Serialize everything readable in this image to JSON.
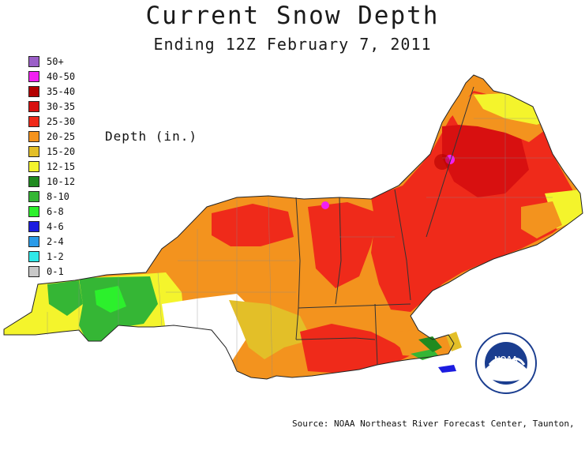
{
  "title": "Current Snow Depth",
  "subtitle": "Ending 12Z February  7, 2011",
  "legend": {
    "title": "Depth (in.)",
    "items": [
      {
        "label": "50+",
        "color": "#9b5fc8"
      },
      {
        "label": "40-50",
        "color": "#f21ff2"
      },
      {
        "label": "35-40",
        "color": "#b40000"
      },
      {
        "label": "30-35",
        "color": "#d81010"
      },
      {
        "label": "25-30",
        "color": "#ef2a1a"
      },
      {
        "label": "20-25",
        "color": "#f3931e"
      },
      {
        "label": "15-20",
        "color": "#e3bf28"
      },
      {
        "label": "12-15",
        "color": "#f4f42c"
      },
      {
        "label": "10-12",
        "color": "#1f8a1f"
      },
      {
        "label": "8-10",
        "color": "#35b635"
      },
      {
        "label": "6-8",
        "color": "#2cf02c"
      },
      {
        "label": "4-6",
        "color": "#1c1ce0"
      },
      {
        "label": "2-4",
        "color": "#2b9be8"
      },
      {
        "label": "1-2",
        "color": "#2fe8e8"
      },
      {
        "label": "0-1",
        "color": "#c8c8c8"
      }
    ]
  },
  "source": "Source: NOAA Northeast River Forecast Center, Taunton,",
  "logo": {
    "text": "NOAA"
  }
}
